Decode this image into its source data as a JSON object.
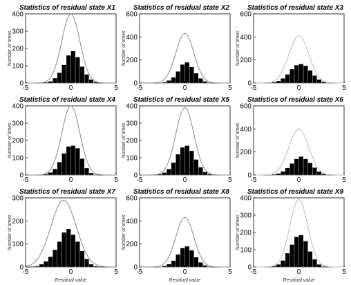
{
  "chart_data": [
    {
      "type": "bar",
      "title": "Statistics of residual state X1",
      "xlabel": "",
      "ylabel": "Number of times",
      "xlim": [
        -5,
        5
      ],
      "ylim": [
        0,
        400
      ],
      "xticks": [
        "-5",
        "0",
        "5"
      ],
      "yticks": [
        "0",
        "100",
        "200",
        "300",
        "400"
      ],
      "bin_centers": [
        -3.25,
        -2.75,
        -2.25,
        -1.75,
        -1.25,
        -0.75,
        -0.25,
        0.25,
        0.75,
        1.25,
        1.75,
        2.25,
        2.75
      ],
      "values": [
        2,
        4,
        10,
        28,
        60,
        105,
        160,
        185,
        150,
        95,
        50,
        20,
        6
      ],
      "curve": {
        "mean": 0,
        "std": 1,
        "peak": 400,
        "color": "#888888"
      },
      "bar_color": "#000000"
    },
    {
      "type": "bar",
      "title": "Statistics of residual state X2",
      "xlabel": "",
      "ylabel": "Number of times",
      "xlim": [
        -5,
        5
      ],
      "ylim": [
        0,
        600
      ],
      "xticks": [
        "-5",
        "0",
        "5"
      ],
      "yticks": [
        "0",
        "200",
        "400",
        "600"
      ],
      "bin_centers": [
        -2.75,
        -2.25,
        -1.75,
        -1.25,
        -0.75,
        -0.25,
        0.25,
        0.75,
        1.25,
        1.75,
        2.25,
        2.75
      ],
      "values": [
        3,
        8,
        22,
        50,
        100,
        160,
        180,
        140,
        85,
        40,
        15,
        4
      ],
      "curve": {
        "mean": 0,
        "std": 1,
        "peak": 430,
        "color": "#888888"
      },
      "bar_color": "#000000"
    },
    {
      "type": "bar",
      "title": "Statistics of residual state X3",
      "xlabel": "",
      "ylabel": "Number of times",
      "xlim": [
        -5,
        5
      ],
      "ylim": [
        0,
        600
      ],
      "xticks": [
        "-5",
        "0",
        "5"
      ],
      "yticks": [
        "0",
        "200",
        "400",
        "600"
      ],
      "bin_centers": [
        -3.25,
        -2.75,
        -2.25,
        -1.75,
        -1.25,
        -0.75,
        -0.25,
        0.25,
        0.75,
        1.25,
        1.75,
        2.25,
        2.75,
        3.25
      ],
      "values": [
        3,
        8,
        18,
        40,
        75,
        120,
        155,
        165,
        150,
        110,
        65,
        30,
        10,
        3
      ],
      "curve": {
        "mean": 0,
        "std": 1.1,
        "peak": 410,
        "color": "#bbbbbb"
      },
      "bar_color": "#000000"
    },
    {
      "type": "bar",
      "title": "Statistics of residual state X4",
      "xlabel": "",
      "ylabel": "Number of times",
      "xlim": [
        -5,
        5
      ],
      "ylim": [
        0,
        400
      ],
      "xticks": [
        "-5",
        "0",
        "5"
      ],
      "yticks": [
        "0",
        "100",
        "200",
        "300",
        "400"
      ],
      "bin_centers": [
        -3.25,
        -2.75,
        -2.25,
        -1.75,
        -1.25,
        -0.75,
        -0.25,
        0.25,
        0.75,
        1.25,
        1.75,
        2.25,
        2.75
      ],
      "values": [
        2,
        6,
        15,
        35,
        75,
        125,
        165,
        170,
        155,
        95,
        40,
        12,
        3
      ],
      "curve": {
        "mean": 0,
        "std": 1,
        "peak": 400,
        "color": "#888888"
      },
      "bar_color": "#000000"
    },
    {
      "type": "bar",
      "title": "Statistics of residual state X5",
      "xlabel": "",
      "ylabel": "Number of times",
      "xlim": [
        -5,
        5
      ],
      "ylim": [
        0,
        400
      ],
      "xticks": [
        "-5",
        "0",
        "5"
      ],
      "yticks": [
        "0",
        "100",
        "200",
        "300",
        "400"
      ],
      "bin_centers": [
        -3.25,
        -2.75,
        -2.25,
        -1.75,
        -1.25,
        -0.75,
        -0.25,
        0.25,
        0.75,
        1.25,
        1.75,
        2.25,
        2.75,
        3.25
      ],
      "values": [
        2,
        5,
        14,
        35,
        72,
        120,
        160,
        170,
        140,
        90,
        45,
        18,
        6,
        2
      ],
      "curve": {
        "mean": 0,
        "std": 1,
        "peak": 390,
        "color": "#888888"
      },
      "bar_color": "#000000"
    },
    {
      "type": "bar",
      "title": "Statistics of residual state X6",
      "xlabel": "",
      "ylabel": "Number of times",
      "xlim": [
        -5,
        5
      ],
      "ylim": [
        0,
        600
      ],
      "xticks": [
        "-5",
        "0",
        "5"
      ],
      "yticks": [
        "0",
        "200",
        "400",
        "600"
      ],
      "bin_centers": [
        -3.25,
        -2.75,
        -2.25,
        -1.75,
        -1.25,
        -0.75,
        -0.25,
        0.25,
        0.75,
        1.25,
        1.75,
        2.25,
        2.75,
        3.25
      ],
      "values": [
        2,
        6,
        14,
        32,
        62,
        100,
        140,
        160,
        140,
        105,
        65,
        30,
        10,
        3
      ],
      "curve": {
        "mean": 0,
        "std": 1.1,
        "peak": 400,
        "color": "#bbbbbb"
      },
      "bar_color": "#000000"
    },
    {
      "type": "bar",
      "title": "Statistics of residual state X7",
      "xlabel": "Residual value",
      "ylabel": "Number of times",
      "xlim": [
        -5,
        5
      ],
      "ylim": [
        0,
        300
      ],
      "xticks": [
        "-5",
        "0",
        "5"
      ],
      "yticks": [
        "0",
        "100",
        "200",
        "300"
      ],
      "bin_centers": [
        -3.75,
        -3.25,
        -2.75,
        -2.25,
        -1.75,
        -1.25,
        -0.75,
        -0.25,
        0.25,
        0.75,
        1.25,
        1.75,
        2.25,
        2.75
      ],
      "values": [
        4,
        12,
        25,
        45,
        75,
        110,
        150,
        165,
        140,
        110,
        70,
        35,
        12,
        4
      ],
      "curve": {
        "mean": -0.8,
        "std": 1.4,
        "peak": 290,
        "color": "#888888"
      },
      "bar_color": "#000000"
    },
    {
      "type": "bar",
      "title": "Statistics of residual state X8",
      "xlabel": "Residual value",
      "ylabel": "Number of times",
      "xlim": [
        -5,
        5
      ],
      "ylim": [
        0,
        600
      ],
      "xticks": [
        "-5",
        "0",
        "5"
      ],
      "yticks": [
        "0",
        "200",
        "400",
        "600"
      ],
      "bin_centers": [
        -2.75,
        -2.25,
        -1.75,
        -1.25,
        -0.75,
        -0.25,
        0.25,
        0.75,
        1.25,
        1.75,
        2.25,
        2.75
      ],
      "values": [
        3,
        10,
        25,
        55,
        110,
        165,
        180,
        145,
        85,
        40,
        15,
        4
      ],
      "curve": {
        "mean": 0,
        "std": 1,
        "peak": 430,
        "color": "#888888"
      },
      "bar_color": "#000000"
    },
    {
      "type": "bar",
      "title": "Statistics of residual state X9",
      "xlabel": "Residual value",
      "ylabel": "Number of times",
      "xlim": [
        -5,
        5
      ],
      "ylim": [
        0,
        400
      ],
      "xticks": [
        "-5",
        "0",
        "5"
      ],
      "yticks": [
        "0",
        "100",
        "200",
        "300",
        "400"
      ],
      "bin_centers": [
        -3.25,
        -2.75,
        -2.25,
        -1.75,
        -1.25,
        -0.75,
        -0.25,
        0.25,
        0.75,
        1.25,
        1.75,
        2.25,
        2.75
      ],
      "values": [
        2,
        6,
        15,
        38,
        80,
        130,
        175,
        185,
        150,
        90,
        45,
        15,
        4
      ],
      "curve": {
        "mean": 0,
        "std": 1,
        "peak": 390,
        "color": "#bbbbbb"
      },
      "bar_color": "#000000"
    }
  ]
}
